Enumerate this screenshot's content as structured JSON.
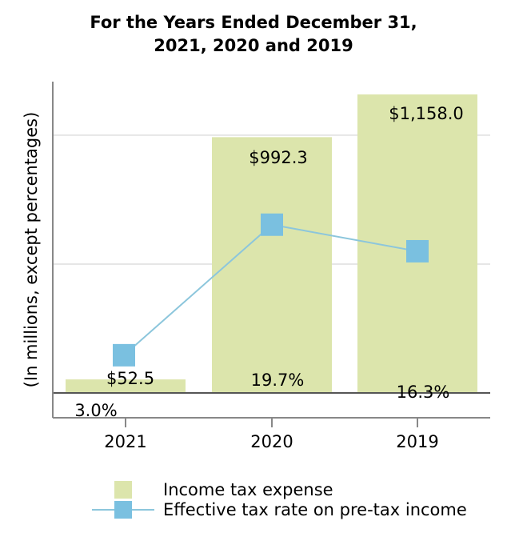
{
  "chart_data": {
    "type": "bar",
    "title_lines": [
      "For the Years Ended December 31,",
      "2021, 2020 and 2019"
    ],
    "ylabel": "(In millions, except percentages)",
    "xlabel": "",
    "categories": [
      "2021",
      "2020",
      "2019"
    ],
    "series": [
      {
        "name": "Income tax expense",
        "type": "bar",
        "values": [
          52.5,
          992.3,
          1158.0
        ],
        "labels": [
          "$52.5",
          "$992.3",
          "$1,158.0"
        ],
        "color": "#dce5ac"
      },
      {
        "name": "Effective tax rate on pre-tax income",
        "type": "line",
        "values": [
          3.0,
          19.7,
          16.3
        ],
        "labels": [
          "3.0%",
          "19.7%",
          "16.3%"
        ],
        "color": "#7ac0e0",
        "line_color": "#8cc6dc"
      }
    ],
    "bar_axis_range": [
      -94,
      1170
    ],
    "rate_axis_range": [
      -5,
      38
    ],
    "grid": true,
    "legend_position": "bottom"
  }
}
